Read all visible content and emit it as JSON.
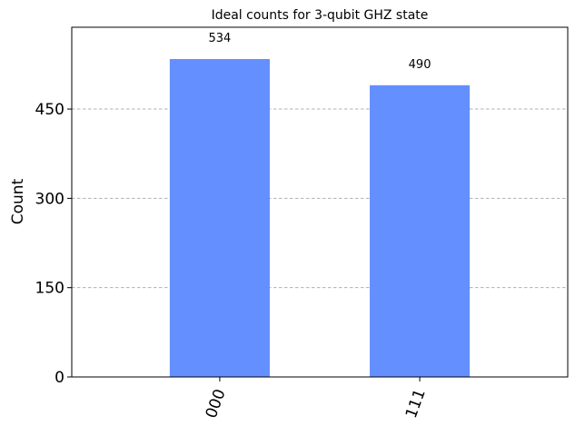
{
  "chart_data": {
    "type": "bar",
    "title": "Ideal counts for 3-qubit GHZ state",
    "xlabel": "",
    "ylabel": "Count",
    "categories": [
      "000",
      "111"
    ],
    "values": [
      534,
      490
    ],
    "data_labels": [
      "534",
      "490"
    ],
    "yticks": [
      0,
      150,
      300,
      450
    ],
    "ytick_labels": [
      "0",
      "150",
      "300",
      "450"
    ],
    "ylim": [
      0,
      587.4
    ],
    "grid": "y-dashed",
    "legend": "none",
    "bar_color": "#648fff",
    "grid_color": "#b0b0b0"
  }
}
